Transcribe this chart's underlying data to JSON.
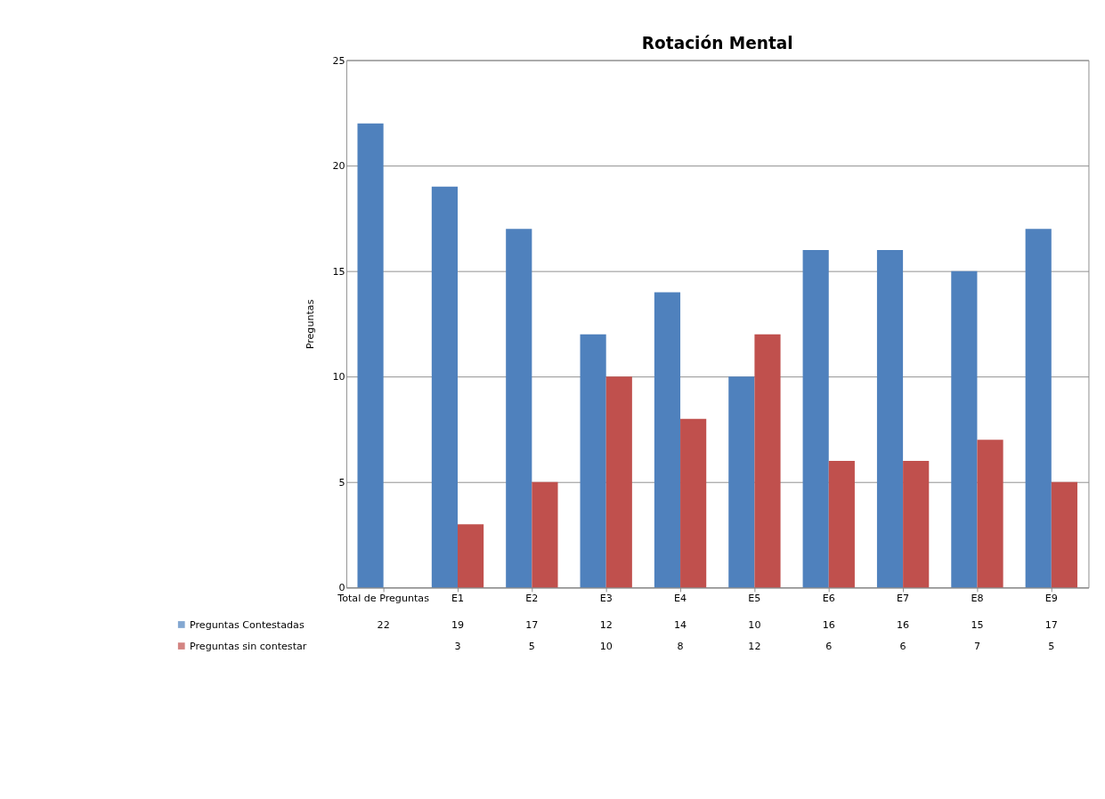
{
  "chart_data": {
    "type": "bar",
    "title": "Rotación Mental",
    "ylabel": "Preguntas",
    "categories": [
      "Total de Preguntas",
      "E1",
      "E2",
      "E3",
      "E4",
      "E5",
      "E6",
      "E7",
      "E8",
      "E9"
    ],
    "series": [
      {
        "name": "Preguntas Contestadas",
        "color": "#4f81bd",
        "values": [
          22,
          19,
          17,
          12,
          14,
          10,
          16,
          16,
          15,
          17
        ]
      },
      {
        "name": "Preguntas sin contestar",
        "color": "#c0504d",
        "values": [
          null,
          3,
          5,
          10,
          8,
          12,
          6,
          6,
          7,
          5
        ]
      }
    ],
    "ylim": [
      0,
      25
    ],
    "yticks": [
      0,
      5,
      10,
      15,
      20,
      25
    ],
    "grid": "y",
    "legend": "bottom",
    "data_labels": true
  }
}
